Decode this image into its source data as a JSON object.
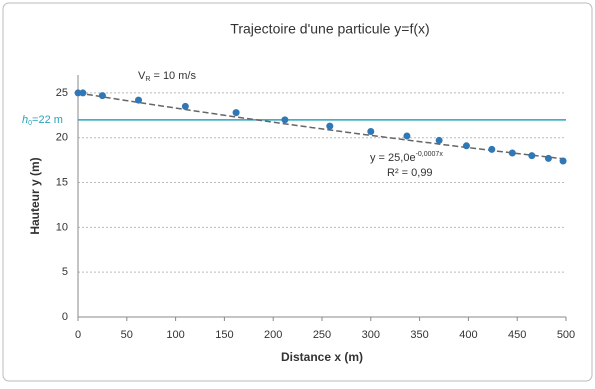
{
  "chart_data": {
    "type": "scatter",
    "title": "Trajectoire d'une particule y=f(x)",
    "x_label": "Distance x (m)",
    "y_label": "Hauteur y (m)",
    "xlim": [
      0,
      500
    ],
    "xticks": [
      0,
      50,
      100,
      150,
      200,
      250,
      300,
      350,
      400,
      450,
      500
    ],
    "ylim": [
      0,
      27
    ],
    "yticks": [
      0,
      5,
      10,
      15,
      20,
      25
    ],
    "grid": true,
    "series": [
      {
        "color": "#2f78b5",
        "x": [
          0,
          5,
          25,
          62,
          110,
          162,
          212,
          258,
          300,
          337,
          370,
          398,
          424,
          445,
          465,
          482,
          497
        ],
        "values": [
          25,
          25,
          24.7,
          24.2,
          23.5,
          22.8,
          22,
          21.3,
          20.7,
          20.2,
          19.7,
          19.1,
          18.7,
          18.3,
          18,
          17.7,
          17.4
        ]
      }
    ],
    "trendline": {
      "a": 25,
      "k": -0.0007,
      "color": "#666666",
      "equation": "y = 25,0e",
      "exponent": "-0,0007x",
      "r2": "R² = 0,99"
    },
    "reference_line": {
      "value": 22,
      "color": "#2aa3bd",
      "label_main": "h",
      "label_sub": "0",
      "label_rest": "=22 m"
    },
    "annotation": {
      "main": "V",
      "sub": "R",
      "rest": " = 10 m/s"
    }
  }
}
